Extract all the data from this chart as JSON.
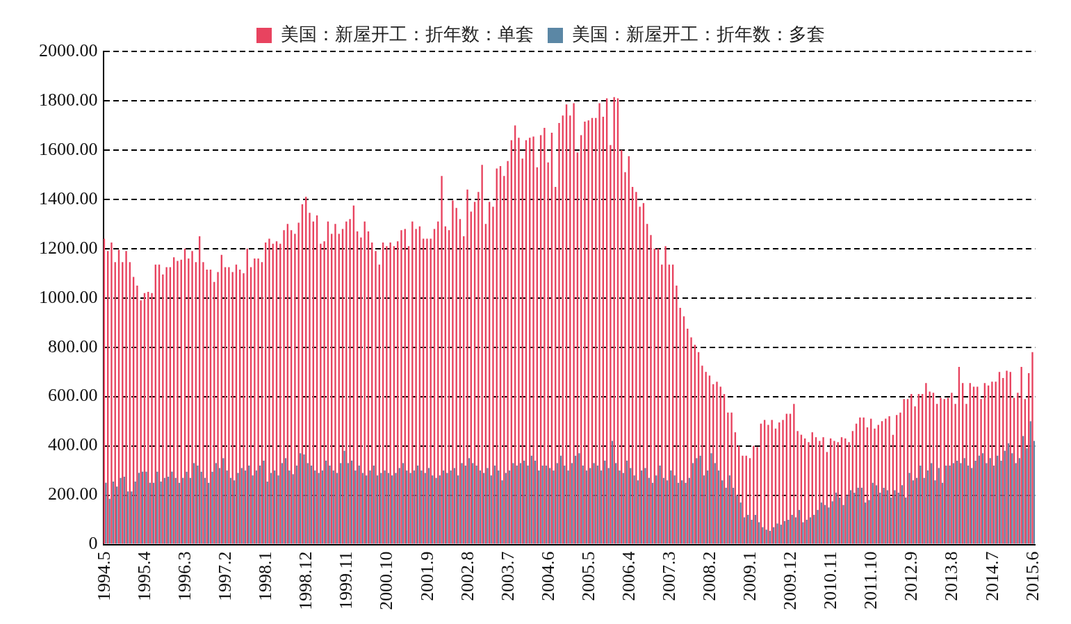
{
  "chart_data": {
    "type": "bar",
    "categories": [
      "1994.5",
      null,
      null,
      null,
      null,
      null,
      null,
      null,
      null,
      null,
      null,
      "1995.4",
      null,
      null,
      null,
      null,
      null,
      null,
      null,
      null,
      null,
      null,
      "1996.3",
      null,
      null,
      null,
      null,
      null,
      null,
      null,
      null,
      null,
      null,
      "1997.2",
      null,
      null,
      null,
      null,
      null,
      null,
      null,
      null,
      null,
      null,
      "1998.1",
      null,
      null,
      null,
      null,
      null,
      null,
      null,
      null,
      null,
      null,
      "1998.12",
      null,
      null,
      null,
      null,
      null,
      null,
      null,
      null,
      null,
      null,
      "1999.11",
      null,
      null,
      null,
      null,
      null,
      null,
      null,
      null,
      null,
      null,
      "2000.10",
      null,
      null,
      null,
      null,
      null,
      null,
      null,
      null,
      null,
      null,
      "2001.9",
      null,
      null,
      null,
      null,
      null,
      null,
      null,
      null,
      null,
      null,
      "2002.8",
      null,
      null,
      null,
      null,
      null,
      null,
      null,
      null,
      null,
      null,
      "2003.7",
      null,
      null,
      null,
      null,
      null,
      null,
      null,
      null,
      null,
      null,
      "2004.6",
      null,
      null,
      null,
      null,
      null,
      null,
      null,
      null,
      null,
      null,
      "2005.5",
      null,
      null,
      null,
      null,
      null,
      null,
      null,
      null,
      null,
      null,
      "2006.4",
      null,
      null,
      null,
      null,
      null,
      null,
      null,
      null,
      null,
      null,
      "2007.3",
      null,
      null,
      null,
      null,
      null,
      null,
      null,
      null,
      null,
      null,
      "2008.2",
      null,
      null,
      null,
      null,
      null,
      null,
      null,
      null,
      null,
      null,
      "2009.1",
      null,
      null,
      null,
      null,
      null,
      null,
      null,
      null,
      null,
      null,
      "2009.12",
      null,
      null,
      null,
      null,
      null,
      null,
      null,
      null,
      null,
      null,
      "2010.11",
      null,
      null,
      null,
      null,
      null,
      null,
      null,
      null,
      null,
      null,
      "2011.10",
      null,
      null,
      null,
      null,
      null,
      null,
      null,
      null,
      null,
      null,
      "2012.9",
      null,
      null,
      null,
      null,
      null,
      null,
      null,
      null,
      null,
      null,
      "2013.8",
      null,
      null,
      null,
      null,
      null,
      null,
      null,
      null,
      null,
      null,
      "2014.7",
      null,
      null,
      null,
      null,
      null,
      null,
      null,
      null,
      null,
      null,
      "2015.6"
    ],
    "series": [
      {
        "name": "美国：新屋开工：折年数：单套",
        "color": "#e8435f",
        "values": [
          1240,
          1190,
          1225,
          1145,
          1195,
          1145,
          1190,
          1145,
          1085,
          1050,
          990,
          1020,
          1025,
          1020,
          1135,
          1135,
          1095,
          1125,
          1125,
          1165,
          1150,
          1155,
          1200,
          1160,
          1190,
          1145,
          1250,
          1145,
          1115,
          1115,
          1065,
          1105,
          1175,
          1125,
          1125,
          1105,
          1135,
          1115,
          1100,
          1200,
          1125,
          1160,
          1160,
          1145,
          1225,
          1240,
          1220,
          1230,
          1220,
          1275,
          1300,
          1275,
          1260,
          1305,
          1380,
          1410,
          1345,
          1310,
          1335,
          1220,
          1230,
          1310,
          1260,
          1300,
          1260,
          1280,
          1310,
          1320,
          1375,
          1270,
          1245,
          1310,
          1270,
          1225,
          1190,
          1135,
          1225,
          1210,
          1225,
          1210,
          1230,
          1275,
          1280,
          1210,
          1310,
          1280,
          1290,
          1240,
          1240,
          1240,
          1280,
          1310,
          1495,
          1290,
          1275,
          1395,
          1365,
          1320,
          1250,
          1440,
          1350,
          1390,
          1430,
          1540,
          1300,
          1390,
          1370,
          1525,
          1535,
          1495,
          1555,
          1640,
          1700,
          1650,
          1565,
          1640,
          1650,
          1655,
          1530,
          1660,
          1690,
          1550,
          1670,
          1450,
          1710,
          1740,
          1785,
          1740,
          1790,
          1590,
          1660,
          1715,
          1720,
          1730,
          1730,
          1790,
          1735,
          1810,
          1620,
          1815,
          1810,
          1600,
          1510,
          1575,
          1450,
          1430,
          1370,
          1385,
          1300,
          1255,
          1200,
          1200,
          1135,
          1210,
          1135,
          1135,
          1050,
          960,
          925,
          875,
          840,
          810,
          780,
          725,
          700,
          685,
          650,
          660,
          640,
          610,
          535,
          535,
          455,
          400,
          360,
          360,
          350,
          400,
          395,
          490,
          505,
          485,
          505,
          470,
          495,
          505,
          530,
          530,
          570,
          460,
          445,
          430,
          415,
          455,
          435,
          420,
          435,
          375,
          430,
          420,
          415,
          435,
          430,
          415,
          460,
          490,
          515,
          515,
          475,
          510,
          470,
          485,
          500,
          510,
          520,
          445,
          525,
          535,
          590,
          590,
          610,
          560,
          610,
          610,
          655,
          620,
          615,
          570,
          595,
          590,
          595,
          615,
          570,
          720,
          655,
          570,
          655,
          640,
          640,
          590,
          655,
          645,
          660,
          660,
          700,
          675,
          705,
          700,
          595,
          615,
          720,
          590,
          695,
          780
        ]
      },
      {
        "name": "美国：新屋开工：折年数：多套",
        "color": "#5b87a5",
        "values": [
          250,
          185,
          255,
          235,
          270,
          275,
          215,
          215,
          255,
          290,
          295,
          295,
          250,
          250,
          295,
          255,
          270,
          275,
          295,
          270,
          250,
          270,
          295,
          270,
          330,
          320,
          295,
          270,
          250,
          295,
          330,
          310,
          350,
          300,
          270,
          260,
          290,
          310,
          300,
          320,
          280,
          300,
          320,
          340,
          255,
          290,
          300,
          280,
          330,
          350,
          300,
          285,
          320,
          370,
          365,
          330,
          320,
          300,
          290,
          300,
          340,
          320,
          300,
          290,
          330,
          380,
          330,
          340,
          300,
          320,
          290,
          280,
          300,
          320,
          280,
          290,
          300,
          290,
          280,
          290,
          310,
          330,
          300,
          290,
          300,
          320,
          300,
          290,
          310,
          280,
          270,
          280,
          300,
          290,
          300,
          310,
          280,
          330,
          320,
          350,
          330,
          320,
          300,
          290,
          310,
          280,
          320,
          300,
          260,
          290,
          300,
          330,
          320,
          330,
          340,
          320,
          360,
          340,
          300,
          320,
          320,
          310,
          300,
          330,
          360,
          320,
          300,
          330,
          360,
          370,
          320,
          300,
          310,
          330,
          320,
          300,
          340,
          310,
          420,
          330,
          300,
          290,
          340,
          310,
          280,
          260,
          300,
          310,
          270,
          250,
          280,
          320,
          270,
          260,
          300,
          280,
          250,
          260,
          250,
          270,
          330,
          350,
          360,
          280,
          300,
          370,
          330,
          300,
          260,
          230,
          280,
          230,
          200,
          170,
          110,
          120,
          100,
          120,
          90,
          70,
          60,
          55,
          70,
          85,
          80,
          95,
          100,
          120,
          110,
          140,
          90,
          100,
          110,
          120,
          140,
          170,
          160,
          150,
          175,
          210,
          190,
          160,
          200,
          220,
          210,
          230,
          230,
          170,
          180,
          250,
          240,
          210,
          230,
          220,
          190,
          220,
          210,
          240,
          190,
          290,
          260,
          270,
          320,
          270,
          300,
          330,
          260,
          310,
          250,
          320,
          320,
          330,
          340,
          330,
          350,
          320,
          310,
          340,
          360,
          370,
          330,
          350,
          320,
          360,
          340,
          380,
          410,
          370,
          330,
          350,
          440,
          390,
          500,
          420
        ]
      }
    ],
    "ylim": [
      0,
      2000
    ],
    "yticks": [
      0,
      {
        "value": 200,
        "label": "200.00"
      },
      {
        "value": 400,
        "label": "400.00"
      },
      {
        "value": 600,
        "label": "600.00"
      },
      {
        "value": 800,
        "label": "800.00"
      },
      {
        "value": 1000,
        "label": "1000.00"
      },
      {
        "value": 1200,
        "label": "1200.00"
      },
      {
        "value": 1400,
        "label": "1400.00"
      },
      {
        "value": 1600,
        "label": "1600.00"
      },
      {
        "value": 1800,
        "label": "1800.00"
      },
      {
        "value": 2000,
        "label": "2000.00"
      }
    ],
    "grid": "y",
    "legend": "top"
  }
}
